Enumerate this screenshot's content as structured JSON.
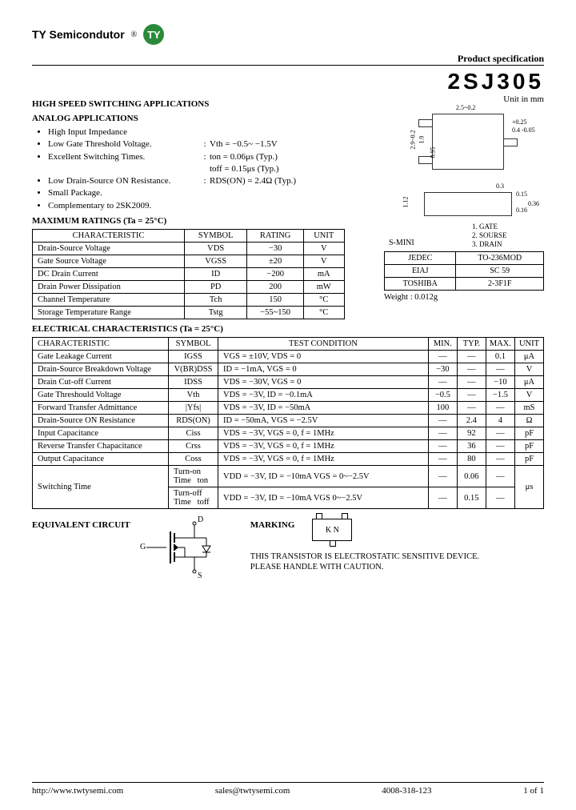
{
  "header": {
    "company": "TY Semicondutor",
    "logo": "TY"
  },
  "prodspec": "Product specification",
  "part_number": "2SJ305",
  "unit_note": "Unit in mm",
  "apps": {
    "line1": "HIGH SPEED SWITCHING APPLICATIONS",
    "line2": "ANALOG APPLICATIONS"
  },
  "features": [
    {
      "text": "High Input Impedance"
    },
    {
      "text": "Low Gate Threshold Voltage.",
      "spec": "Vth = −0.5~ −1.5V"
    },
    {
      "text": "Excellent Switching Times.",
      "spec": "ton = 0.06μs (Typ.)"
    },
    {
      "text": "",
      "spec": "toff = 0.15μs (Typ.)"
    },
    {
      "text": "Low Drain-Source ON Resistance.",
      "spec": "RDS(ON) = 2.4Ω (Typ.)"
    },
    {
      "text": "Small Package."
    },
    {
      "text": "Complementary to 2SK2009."
    }
  ],
  "max_title": "MAXIMUM RATINGS (Ta = 25°C)",
  "max_headers": [
    "CHARACTERISTIC",
    "SYMBOL",
    "RATING",
    "UNIT"
  ],
  "max_rows": [
    [
      "Drain-Source Voltage",
      "VDS",
      "−30",
      "V"
    ],
    [
      "Gate Source Voltage",
      "VGSS",
      "±20",
      "V"
    ],
    [
      "DC Drain Current",
      "ID",
      "−200",
      "mA"
    ],
    [
      "Drain Power Dissipation",
      "PD",
      "200",
      "mW"
    ],
    [
      "Channel Temperature",
      "Tch",
      "150",
      "°C"
    ],
    [
      "Storage Temperature Range",
      "Tstg",
      "−55~150",
      "°C"
    ]
  ],
  "elec_title": "ELECTRICAL CHARACTERISTICS (Ta = 25°C)",
  "elec_headers": [
    "CHARACTERISTIC",
    "SYMBOL",
    "TEST CONDITION",
    "MIN.",
    "TYP.",
    "MAX.",
    "UNIT"
  ],
  "elec_rows": [
    [
      "Gate Leakage Current",
      "IGSS",
      "VGS = ±10V, VDS = 0",
      "—",
      "—",
      "0.1",
      "μA"
    ],
    [
      "Drain-Source Breakdown Voltage",
      "V(BR)DSS",
      "ID = −1mA, VGS = 0",
      "−30",
      "—",
      "—",
      "V"
    ],
    [
      "Drain Cut-off Current",
      "IDSS",
      "VDS = −30V, VGS = 0",
      "—",
      "—",
      "−10",
      "μA"
    ],
    [
      "Gate Threshould Voltage",
      "Vth",
      "VDS = −3V, ID = −0.1mA",
      "−0.5",
      "—",
      "−1.5",
      "V"
    ],
    [
      "Forward Transfer Admittance",
      "|Yfs|",
      "VDS = −3V, ID = −50mA",
      "100",
      "—",
      "—",
      "mS"
    ],
    [
      "Drain-Source ON Resistance",
      "RDS(ON)",
      "ID = −50mA, VGS = −2.5V",
      "—",
      "2.4",
      "4",
      "Ω"
    ],
    [
      "Input Capacitance",
      "Ciss",
      "VDS = −3V, VGS = 0, f = 1MHz",
      "—",
      "92",
      "—",
      "pF"
    ],
    [
      "Reverse Transfer Chapacitance",
      "Crss",
      "VDS = −3V, VGS = 0, f = 1MHz",
      "—",
      "36",
      "—",
      "pF"
    ],
    [
      "Output Capacitance",
      "Coss",
      "VDS = −3V, VGS = 0, f = 1MHz",
      "—",
      "80",
      "—",
      "pF"
    ]
  ],
  "switching": {
    "label": "Switching Time",
    "rows": [
      {
        "name": "Turn-on Time",
        "sym": "ton",
        "cond": "VDD = −3V, ID = −10mA VGS = 0~−2.5V",
        "min": "—",
        "typ": "0.06",
        "max": "—"
      },
      {
        "name": "Turn-off Time",
        "sym": "toff",
        "cond": "VDD = −3V, ID = −10mA VGS  0~−2.5V",
        "min": "—",
        "typ": "0.15",
        "max": "—"
      }
    ],
    "unit": "μs"
  },
  "package": {
    "name": "S-MINI",
    "rows": [
      [
        "JEDEC",
        "TO-236MOD"
      ],
      [
        "EIAJ",
        "SC 59"
      ],
      [
        "TOSHIBA",
        "2-3F1F"
      ]
    ],
    "weight": "Weight : 0.012g",
    "dims": {
      "w": "2.5~0.2",
      "w2": "2.9~0.2",
      "h1": "1.9",
      "h2": "0.95",
      "t1": "+0.25",
      "t2": "0.4 -0.05",
      "p": "0.3",
      "p2": "0.15",
      "b": "0.15",
      "b2": "1.12",
      "c1": "0.16",
      "c2": "0.36"
    },
    "pins": {
      "p1": "1. GATE",
      "p2": "2. SOURSE",
      "p3": "3. DRAIN"
    }
  },
  "equiv_title": "EQUIVALENT CIRCUIT",
  "marking_title": "MARKING",
  "marking_code": "K N",
  "warning": {
    "l1": "THIS TRANSISTOR IS ELECTROSTATIC SENSITIVE DEVICE.",
    "l2": "PLEASE HANDLE WITH CAUTION."
  },
  "circuit_labels": {
    "g": "G",
    "d": "D",
    "s": "S"
  },
  "footer": {
    "url": "http://www.twtysemi.com",
    "email": "sales@twtysemi.com",
    "phone": "4008-318-123",
    "page": "1 of 1"
  }
}
